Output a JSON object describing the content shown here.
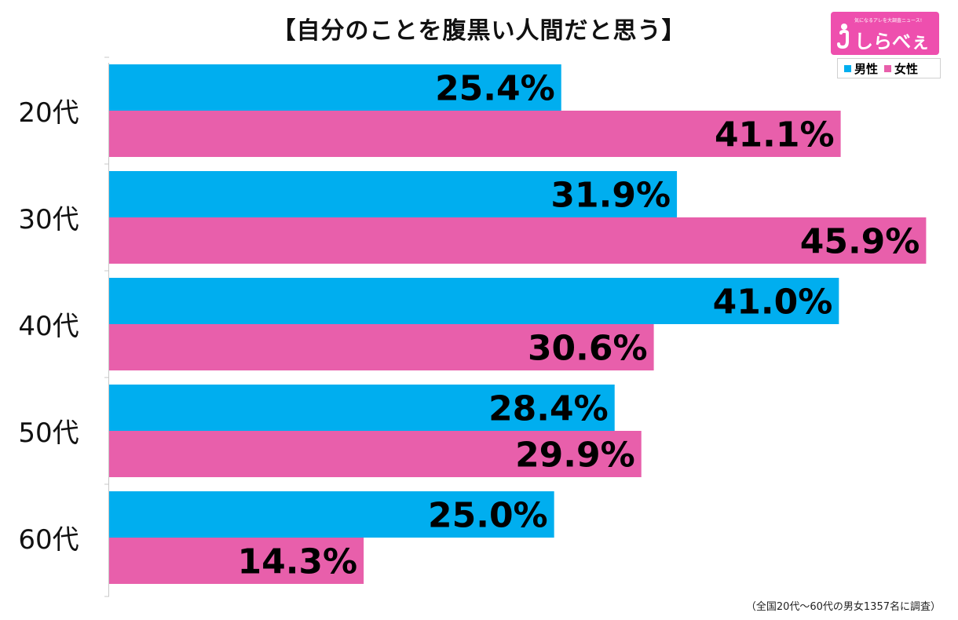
{
  "title": "【自分のことを腹黒い人間だと思う】",
  "logo": {
    "tagline": "気になるアレを大調査ニュース!",
    "brand": "しらべぇ"
  },
  "footnote": "（全国20代～60代の男女1357名に調査）",
  "colors": {
    "male": "#00aeef",
    "female": "#e85fab"
  },
  "chart_data": {
    "type": "bar",
    "orientation": "horizontal",
    "categories": [
      "20代",
      "30代",
      "40代",
      "50代",
      "60代"
    ],
    "series": [
      {
        "name": "男性",
        "values": [
          25.4,
          31.9,
          41.0,
          28.4,
          25.0
        ],
        "labels": [
          "25.4%",
          "31.9%",
          "41.0%",
          "28.4%",
          "25.0%"
        ]
      },
      {
        "name": "女性",
        "values": [
          41.1,
          45.9,
          30.6,
          29.9,
          14.3
        ],
        "labels": [
          "41.1%",
          "45.9%",
          "30.6%",
          "29.9%",
          "14.3%"
        ]
      }
    ],
    "xlim": [
      0,
      46.5
    ],
    "legend_position": "top-right",
    "grid": false
  }
}
